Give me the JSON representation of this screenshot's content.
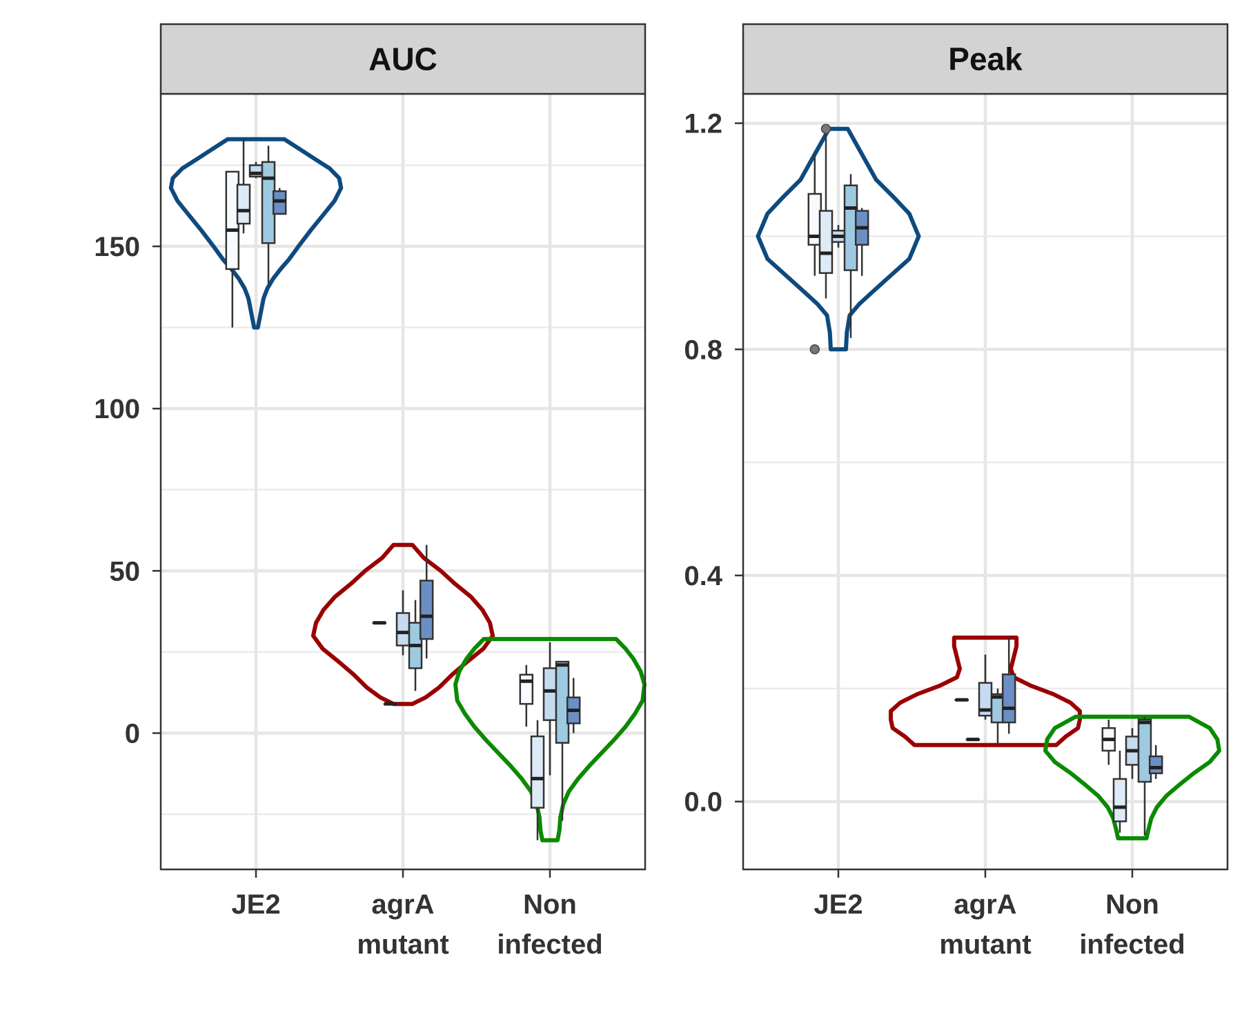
{
  "chart_data": [
    {
      "type": "violin",
      "title": "AUC",
      "xlabel": "",
      "ylabel": "",
      "ylim": [
        -42,
        197
      ],
      "yticks": [
        0,
        50,
        100,
        150
      ],
      "minor_yticks": [
        -25,
        25,
        75,
        125,
        175
      ],
      "grid": true,
      "categories": [
        {
          "id": "JE2",
          "lines": [
            "JE2"
          ]
        },
        {
          "id": "agrA mutant",
          "lines": [
            "agrA",
            "mutant"
          ]
        },
        {
          "id": "Non infected",
          "lines": [
            "Non",
            "infected"
          ]
        }
      ],
      "violins": [
        {
          "category": "JE2",
          "color": "#0e4a7f",
          "profile": [
            [
              125,
              0.02
            ],
            [
              128,
              0.04
            ],
            [
              131,
              0.06
            ],
            [
              134,
              0.08
            ],
            [
              137,
              0.12
            ],
            [
              140,
              0.18
            ],
            [
              143,
              0.26
            ],
            [
              146,
              0.35
            ],
            [
              150,
              0.45
            ],
            [
              155,
              0.58
            ],
            [
              160,
              0.72
            ],
            [
              164,
              0.83
            ],
            [
              168,
              0.9
            ],
            [
              171,
              0.88
            ],
            [
              174,
              0.78
            ],
            [
              177,
              0.62
            ],
            [
              180,
              0.46
            ],
            [
              183,
              0.3
            ]
          ]
        },
        {
          "category": "agrA mutant",
          "color": "#9a0000",
          "profile": [
            [
              9,
              0.1
            ],
            [
              11,
              0.24
            ],
            [
              14,
              0.38
            ],
            [
              18,
              0.52
            ],
            [
              22,
              0.68
            ],
            [
              26,
              0.85
            ],
            [
              30,
              0.95
            ],
            [
              34,
              0.92
            ],
            [
              38,
              0.84
            ],
            [
              42,
              0.72
            ],
            [
              46,
              0.55
            ],
            [
              50,
              0.4
            ],
            [
              54,
              0.22
            ],
            [
              58,
              0.1
            ]
          ]
        },
        {
          "category": "Non infected",
          "color": "#0a8a00",
          "profile": [
            [
              -33,
              0.08
            ],
            [
              -30,
              0.1
            ],
            [
              -26,
              0.11
            ],
            [
              -22,
              0.14
            ],
            [
              -18,
              0.2
            ],
            [
              -14,
              0.3
            ],
            [
              -10,
              0.42
            ],
            [
              -6,
              0.55
            ],
            [
              -2,
              0.68
            ],
            [
              2,
              0.8
            ],
            [
              6,
              0.9
            ],
            [
              10,
              0.98
            ],
            [
              15,
              1.0
            ],
            [
              19,
              0.96
            ],
            [
              23,
              0.88
            ],
            [
              26,
              0.8
            ],
            [
              29,
              0.7
            ]
          ]
        }
      ],
      "boxes": [
        {
          "category": "JE2",
          "offset": -0.19,
          "fill": "#f7fbff",
          "min": 125,
          "q1": 143,
          "median": 155,
          "q3": 173,
          "max": 173,
          "outliers": []
        },
        {
          "category": "JE2",
          "offset": -0.1,
          "fill": "#deebf7",
          "min": 154,
          "q1": 157,
          "median": 161,
          "q3": 169,
          "max": 183,
          "outliers": []
        },
        {
          "category": "JE2",
          "offset": 0.0,
          "fill": "#c6dbef",
          "min": 171,
          "q1": 171.5,
          "median": 172.5,
          "q3": 175,
          "max": 176,
          "outliers": []
        },
        {
          "category": "JE2",
          "offset": 0.1,
          "fill": "#9ecae1",
          "min": 138,
          "q1": 151,
          "median": 171,
          "q3": 176,
          "max": 181,
          "outliers": []
        },
        {
          "category": "JE2",
          "offset": 0.19,
          "fill": "#6b8fc4",
          "min": 160,
          "q1": 160,
          "median": 164,
          "q3": 167,
          "max": 168,
          "outliers": []
        },
        {
          "category": "agrA mutant",
          "offset": -0.19,
          "fill": "#f7fbff",
          "min": 34,
          "q1": 34,
          "median": 34,
          "q3": 34,
          "max": 34,
          "outliers": []
        },
        {
          "category": "agrA mutant",
          "offset": -0.1,
          "fill": "#deebf7",
          "min": 9,
          "q1": 9,
          "median": 9,
          "q3": 9,
          "max": 9,
          "outliers": []
        },
        {
          "category": "agrA mutant",
          "offset": 0.0,
          "fill": "#c6dbef",
          "min": 24,
          "q1": 27,
          "median": 31,
          "q3": 37,
          "max": 44,
          "outliers": []
        },
        {
          "category": "agrA mutant",
          "offset": 0.1,
          "fill": "#9ecae1",
          "min": 13,
          "q1": 20,
          "median": 27,
          "q3": 34,
          "max": 41,
          "outliers": []
        },
        {
          "category": "agrA mutant",
          "offset": 0.19,
          "fill": "#6b8fc4",
          "min": 23,
          "q1": 29,
          "median": 36,
          "q3": 47,
          "max": 58,
          "outliers": []
        },
        {
          "category": "Non infected",
          "offset": -0.19,
          "fill": "#f7fbff",
          "min": 2,
          "q1": 9,
          "median": 16,
          "q3": 18,
          "max": 21,
          "outliers": []
        },
        {
          "category": "Non infected",
          "offset": -0.1,
          "fill": "#deebf7",
          "min": -33,
          "q1": -23,
          "median": -14,
          "q3": -1,
          "max": 4,
          "outliers": []
        },
        {
          "category": "Non infected",
          "offset": 0.0,
          "fill": "#c6dbef",
          "min": -13,
          "q1": 4,
          "median": 13,
          "q3": 20,
          "max": 28,
          "outliers": []
        },
        {
          "category": "Non infected",
          "offset": 0.1,
          "fill": "#9ecae1",
          "min": -27,
          "q1": -3,
          "median": 21,
          "q3": 22,
          "max": 22,
          "outliers": []
        },
        {
          "category": "Non infected",
          "offset": 0.19,
          "fill": "#6b8fc4",
          "min": 0,
          "q1": 3,
          "median": 7,
          "q3": 11,
          "max": 17,
          "outliers": []
        }
      ]
    },
    {
      "type": "violin",
      "title": "Peak",
      "xlabel": "",
      "ylabel": "",
      "ylim": [
        -0.12,
        1.252
      ],
      "yticks": [
        0.0,
        0.4,
        0.8,
        1.2
      ],
      "minor_yticks": [
        0.2,
        0.6,
        1.0
      ],
      "grid": true,
      "categories": [
        {
          "id": "JE2",
          "lines": [
            "JE2"
          ]
        },
        {
          "id": "agrA mutant",
          "lines": [
            "agrA",
            "mutant"
          ]
        },
        {
          "id": "Non infected",
          "lines": [
            "Non",
            "infected"
          ]
        }
      ],
      "violins": [
        {
          "category": "JE2",
          "color": "#0e4a7f",
          "profile": [
            [
              0.8,
              0.08
            ],
            [
              0.83,
              0.09
            ],
            [
              0.86,
              0.12
            ],
            [
              0.88,
              0.22
            ],
            [
              0.9,
              0.35
            ],
            [
              0.93,
              0.55
            ],
            [
              0.96,
              0.75
            ],
            [
              1.0,
              0.85
            ],
            [
              1.04,
              0.75
            ],
            [
              1.07,
              0.58
            ],
            [
              1.1,
              0.4
            ],
            [
              1.13,
              0.3
            ],
            [
              1.16,
              0.2
            ],
            [
              1.19,
              0.1
            ]
          ]
        },
        {
          "category": "agrA mutant",
          "color": "#9a0000",
          "profile": [
            [
              0.1,
              0.75
            ],
            [
              0.115,
              0.85
            ],
            [
              0.13,
              0.98
            ],
            [
              0.145,
              1.0
            ],
            [
              0.16,
              1.0
            ],
            [
              0.175,
              0.9
            ],
            [
              0.19,
              0.72
            ],
            [
              0.205,
              0.48
            ],
            [
              0.22,
              0.3
            ],
            [
              0.235,
              0.27
            ],
            [
              0.255,
              0.3
            ],
            [
              0.275,
              0.33
            ],
            [
              0.29,
              0.33
            ]
          ]
        },
        {
          "category": "Non infected",
          "color": "#0a8a00",
          "profile": [
            [
              -0.065,
              0.15
            ],
            [
              -0.05,
              0.17
            ],
            [
              -0.03,
              0.2
            ],
            [
              -0.01,
              0.26
            ],
            [
              0.01,
              0.36
            ],
            [
              0.03,
              0.5
            ],
            [
              0.05,
              0.65
            ],
            [
              0.07,
              0.82
            ],
            [
              0.09,
              0.92
            ],
            [
              0.11,
              0.9
            ],
            [
              0.13,
              0.82
            ],
            [
              0.15,
              0.6
            ]
          ]
        }
      ],
      "boxes": [
        {
          "category": "JE2",
          "offset": -0.19,
          "fill": "#f7fbff",
          "min": 0.93,
          "q1": 0.985,
          "median": 1.0,
          "q3": 1.075,
          "max": 1.145,
          "outliers": [
            0.8
          ]
        },
        {
          "category": "JE2",
          "offset": -0.1,
          "fill": "#deebf7",
          "min": 0.89,
          "q1": 0.935,
          "median": 0.97,
          "q3": 1.045,
          "max": 1.18,
          "outliers": [
            1.19
          ]
        },
        {
          "category": "JE2",
          "offset": 0.0,
          "fill": "#c6dbef",
          "min": 0.98,
          "q1": 0.99,
          "median": 1.0,
          "q3": 1.01,
          "max": 1.02,
          "outliers": []
        },
        {
          "category": "JE2",
          "offset": 0.1,
          "fill": "#9ecae1",
          "min": 0.82,
          "q1": 0.94,
          "median": 1.05,
          "q3": 1.09,
          "max": 1.11,
          "outliers": []
        },
        {
          "category": "JE2",
          "offset": 0.19,
          "fill": "#6b8fc4",
          "min": 0.93,
          "q1": 0.985,
          "median": 1.015,
          "q3": 1.045,
          "max": 1.05,
          "outliers": []
        },
        {
          "category": "agrA mutant",
          "offset": -0.19,
          "fill": "#f7fbff",
          "min": 0.18,
          "q1": 0.18,
          "median": 0.18,
          "q3": 0.18,
          "max": 0.18,
          "outliers": []
        },
        {
          "category": "agrA mutant",
          "offset": -0.1,
          "fill": "#deebf7",
          "min": 0.11,
          "q1": 0.11,
          "median": 0.11,
          "q3": 0.11,
          "max": 0.11,
          "outliers": []
        },
        {
          "category": "agrA mutant",
          "offset": 0.0,
          "fill": "#c6dbef",
          "min": 0.145,
          "q1": 0.152,
          "median": 0.162,
          "q3": 0.21,
          "max": 0.26,
          "outliers": []
        },
        {
          "category": "agrA mutant",
          "offset": 0.1,
          "fill": "#9ecae1",
          "min": 0.1,
          "q1": 0.14,
          "median": 0.185,
          "q3": 0.19,
          "max": 0.2,
          "outliers": []
        },
        {
          "category": "agrA mutant",
          "offset": 0.19,
          "fill": "#6b8fc4",
          "min": 0.12,
          "q1": 0.14,
          "median": 0.165,
          "q3": 0.225,
          "max": 0.29,
          "outliers": []
        },
        {
          "category": "Non infected",
          "offset": -0.19,
          "fill": "#f7fbff",
          "min": 0.065,
          "q1": 0.09,
          "median": 0.11,
          "q3": 0.13,
          "max": 0.145,
          "outliers": []
        },
        {
          "category": "Non infected",
          "offset": -0.1,
          "fill": "#deebf7",
          "min": -0.055,
          "q1": -0.035,
          "median": -0.01,
          "q3": 0.04,
          "max": 0.09,
          "outliers": []
        },
        {
          "category": "Non infected",
          "offset": 0.0,
          "fill": "#c6dbef",
          "min": 0.04,
          "q1": 0.065,
          "median": 0.09,
          "q3": 0.115,
          "max": 0.13,
          "outliers": []
        },
        {
          "category": "Non infected",
          "offset": 0.1,
          "fill": "#9ecae1",
          "min": -0.06,
          "q1": 0.035,
          "median": 0.14,
          "q3": 0.145,
          "max": 0.15,
          "outliers": []
        },
        {
          "category": "Non infected",
          "offset": 0.19,
          "fill": "#6b8fc4",
          "min": 0.04,
          "q1": 0.05,
          "median": 0.06,
          "q3": 0.08,
          "max": 0.1,
          "outliers": []
        }
      ]
    }
  ]
}
